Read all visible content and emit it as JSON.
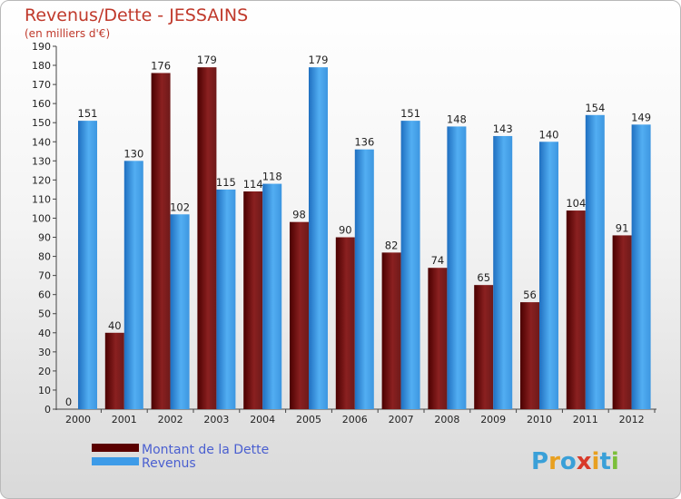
{
  "chart_data": {
    "type": "bar",
    "title": "Revenus/Dette - JESSAINS",
    "subtitle": "(en milliers d'€)",
    "categories": [
      "2000",
      "2001",
      "2002",
      "2003",
      "2004",
      "2005",
      "2006",
      "2007",
      "2008",
      "2009",
      "2010",
      "2011",
      "2012"
    ],
    "series": [
      {
        "name": "Montant de la Dette",
        "color": "#7a1a1a",
        "values": [
          0,
          40,
          176,
          179,
          114,
          98,
          90,
          82,
          74,
          65,
          56,
          104,
          91
        ]
      },
      {
        "name": "Revenus",
        "color": "#3d9be8",
        "values": [
          151,
          130,
          102,
          115,
          118,
          179,
          136,
          151,
          148,
          143,
          140,
          154,
          149
        ]
      }
    ],
    "ylim": [
      0,
      190
    ],
    "yticks": [
      0,
      10,
      20,
      30,
      40,
      50,
      60,
      70,
      80,
      90,
      100,
      110,
      120,
      130,
      140,
      150,
      160,
      170,
      180,
      190
    ],
    "grid": false,
    "legend_position": "bottom-left"
  },
  "logo": {
    "text": "Proxiti"
  }
}
